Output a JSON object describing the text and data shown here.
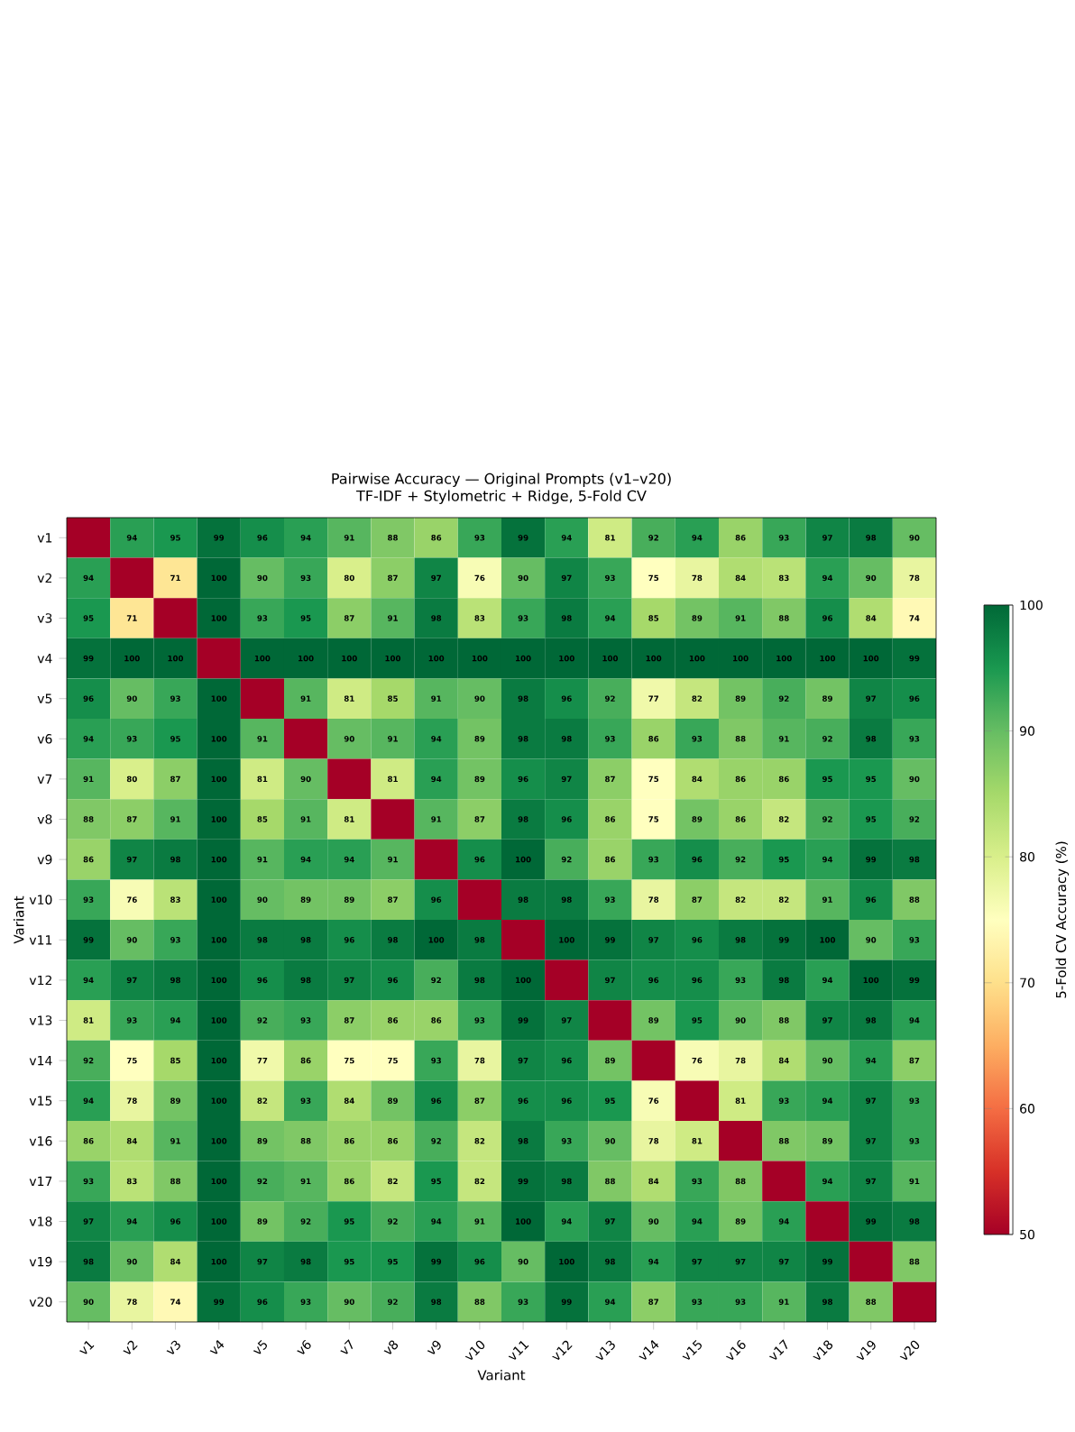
{
  "chart_data": {
    "type": "heatmap",
    "title": "Pairwise Accuracy — Original Prompts (v1–v20)",
    "subtitle": "TF-IDF + Stylometric + Ridge, 5-Fold CV",
    "xlabel": "Variant",
    "ylabel": "Variant",
    "clabel": "5-Fold CV Accuracy (%)",
    "categories": [
      "v1",
      "v2",
      "v3",
      "v4",
      "v5",
      "v6",
      "v7",
      "v8",
      "v9",
      "v10",
      "v11",
      "v12",
      "v13",
      "v14",
      "v15",
      "v16",
      "v17",
      "v18",
      "v19",
      "v20"
    ],
    "y_categories": [
      "v1",
      "v2",
      "v3",
      "v4",
      "v5",
      "v6",
      "v7",
      "v8",
      "v9",
      "v10",
      "v11",
      "v12",
      "v13",
      "v14",
      "v15",
      "v16",
      "v17",
      "v18",
      "v19",
      "v20"
    ],
    "cells": [
      [
        50,
        94,
        95,
        99,
        96,
        94,
        91,
        88,
        86,
        93,
        99,
        94,
        81,
        92,
        94,
        86,
        93,
        97,
        98,
        90
      ],
      [
        94,
        50,
        71,
        100,
        90,
        93,
        80,
        87,
        97,
        76,
        90,
        97,
        93,
        75,
        78,
        84,
        83,
        94,
        90,
        78
      ],
      [
        95,
        71,
        50,
        100,
        93,
        95,
        87,
        91,
        98,
        83,
        93,
        98,
        94,
        85,
        89,
        91,
        88,
        96,
        84,
        74
      ],
      [
        99,
        100,
        100,
        50,
        100,
        100,
        100,
        100,
        100,
        100,
        100,
        100,
        100,
        100,
        100,
        100,
        100,
        100,
        100,
        99
      ],
      [
        96,
        90,
        93,
        100,
        50,
        91,
        81,
        85,
        91,
        90,
        98,
        96,
        92,
        77,
        82,
        89,
        92,
        89,
        97,
        96
      ],
      [
        94,
        93,
        95,
        100,
        91,
        50,
        90,
        91,
        94,
        89,
        98,
        98,
        93,
        86,
        93,
        88,
        91,
        92,
        98,
        93
      ],
      [
        91,
        80,
        87,
        100,
        81,
        90,
        50,
        81,
        94,
        89,
        96,
        97,
        87,
        75,
        84,
        86,
        86,
        95,
        95,
        90
      ],
      [
        88,
        87,
        91,
        100,
        85,
        91,
        81,
        50,
        91,
        87,
        98,
        96,
        86,
        75,
        89,
        86,
        82,
        92,
        95,
        92
      ],
      [
        86,
        97,
        98,
        100,
        91,
        94,
        94,
        91,
        50,
        96,
        100,
        92,
        86,
        93,
        96,
        92,
        95,
        94,
        99,
        98
      ],
      [
        93,
        76,
        83,
        100,
        90,
        89,
        89,
        87,
        96,
        50,
        98,
        98,
        93,
        78,
        87,
        82,
        82,
        91,
        96,
        88
      ],
      [
        99,
        90,
        93,
        100,
        98,
        98,
        96,
        98,
        100,
        98,
        50,
        100,
        99,
        97,
        96,
        98,
        99,
        100,
        90,
        93
      ],
      [
        94,
        97,
        98,
        100,
        96,
        98,
        97,
        96,
        92,
        98,
        100,
        50,
        97,
        96,
        96,
        93,
        98,
        94,
        100,
        99
      ],
      [
        81,
        93,
        94,
        100,
        92,
        93,
        87,
        86,
        86,
        93,
        99,
        97,
        50,
        89,
        95,
        90,
        88,
        97,
        98,
        94
      ],
      [
        92,
        75,
        85,
        100,
        77,
        86,
        75,
        75,
        93,
        78,
        97,
        96,
        89,
        50,
        76,
        78,
        84,
        90,
        94,
        87
      ],
      [
        94,
        78,
        89,
        100,
        82,
        93,
        84,
        89,
        96,
        87,
        96,
        96,
        95,
        76,
        50,
        81,
        93,
        94,
        97,
        93
      ],
      [
        86,
        84,
        91,
        100,
        89,
        88,
        86,
        86,
        92,
        82,
        98,
        93,
        90,
        78,
        81,
        50,
        88,
        89,
        97,
        93
      ],
      [
        93,
        83,
        88,
        100,
        92,
        91,
        86,
        82,
        95,
        82,
        99,
        98,
        88,
        84,
        93,
        88,
        50,
        94,
        97,
        91
      ],
      [
        97,
        94,
        96,
        100,
        89,
        92,
        95,
        92,
        94,
        91,
        100,
        94,
        97,
        90,
        94,
        89,
        94,
        50,
        99,
        98
      ],
      [
        98,
        90,
        84,
        100,
        97,
        98,
        95,
        95,
        99,
        96,
        90,
        100,
        98,
        94,
        97,
        97,
        97,
        99,
        50,
        88
      ],
      [
        90,
        78,
        74,
        99,
        96,
        93,
        90,
        92,
        98,
        88,
        93,
        99,
        94,
        87,
        93,
        93,
        91,
        98,
        88,
        50
      ]
    ],
    "cell_labels": [
      [
        null,
        "94",
        "95",
        "99",
        "96",
        "94",
        "91",
        "88",
        "86",
        "93",
        "99",
        "94",
        "81",
        "92",
        "94",
        "86",
        "93",
        "97",
        "98",
        "90"
      ],
      [
        "94",
        null,
        "71",
        "100",
        "90",
        "93",
        "80",
        "87",
        "97",
        "76",
        "90",
        "97",
        "93",
        "75",
        "78",
        "84",
        "83",
        "94",
        "90",
        "78"
      ],
      [
        "95",
        "71",
        null,
        "100",
        "93",
        "95",
        "87",
        "91",
        "98",
        "83",
        "93",
        "98",
        "94",
        "85",
        "89",
        "91",
        "88",
        "96",
        "84",
        "74"
      ],
      [
        "99",
        "100",
        "100",
        null,
        "100",
        "100",
        "100",
        "100",
        "100",
        "100",
        "100",
        "100",
        "100",
        "100",
        "100",
        "100",
        "100",
        "100",
        "100",
        "99"
      ],
      [
        "96",
        "90",
        "93",
        "100",
        null,
        "91",
        "81",
        "85",
        "91",
        "90",
        "98",
        "96",
        "92",
        "77",
        "82",
        "89",
        "92",
        "89",
        "97",
        "96"
      ],
      [
        "94",
        "93",
        "95",
        "100",
        "91",
        null,
        "90",
        "91",
        "94",
        "89",
        "98",
        "98",
        "93",
        "86",
        "93",
        "88",
        "91",
        "92",
        "98",
        "93"
      ],
      [
        "91",
        "80",
        "87",
        "100",
        "81",
        "90",
        null,
        "81",
        "94",
        "89",
        "96",
        "97",
        "87",
        "75",
        "84",
        "86",
        "86",
        "95",
        "95",
        "90"
      ],
      [
        "88",
        "87",
        "91",
        "100",
        "85",
        "91",
        "81",
        null,
        "91",
        "87",
        "98",
        "96",
        "86",
        "75",
        "89",
        "86",
        "82",
        "92",
        "95",
        "92"
      ],
      [
        "86",
        "97",
        "98",
        "100",
        "91",
        "94",
        "94",
        "91",
        null,
        "96",
        "100",
        "92",
        "86",
        "93",
        "96",
        "92",
        "95",
        "94",
        "99",
        "98"
      ],
      [
        "93",
        "76",
        "83",
        "100",
        "90",
        "89",
        "89",
        "87",
        "96",
        null,
        "98",
        "98",
        "93",
        "78",
        "87",
        "82",
        "82",
        "91",
        "96",
        "88"
      ],
      [
        "99",
        "90",
        "93",
        "100",
        "98",
        "98",
        "96",
        "98",
        "100",
        "98",
        null,
        "100",
        "99",
        "97",
        "96",
        "98",
        "99",
        "100",
        "90",
        "93"
      ],
      [
        "94",
        "97",
        "98",
        "100",
        "96",
        "98",
        "97",
        "96",
        "92",
        "98",
        "100",
        null,
        "97",
        "96",
        "96",
        "93",
        "98",
        "94",
        "100",
        "99"
      ],
      [
        "81",
        "93",
        "94",
        "100",
        "92",
        "93",
        "87",
        "86",
        "86",
        "93",
        "99",
        "97",
        null,
        "89",
        "95",
        "90",
        "88",
        "97",
        "98",
        "94"
      ],
      [
        "92",
        "75",
        "85",
        "100",
        "77",
        "86",
        "75",
        "75",
        "93",
        "78",
        "97",
        "96",
        "89",
        null,
        "76",
        "78",
        "84",
        "90",
        "94",
        "87"
      ],
      [
        "94",
        "78",
        "89",
        "100",
        "82",
        "93",
        "84",
        "89",
        "96",
        "87",
        "96",
        "96",
        "95",
        "76",
        null,
        "81",
        "93",
        "94",
        "97",
        "93"
      ],
      [
        "86",
        "84",
        "91",
        "100",
        "89",
        "88",
        "86",
        "86",
        "92",
        "82",
        "98",
        "93",
        "90",
        "78",
        "81",
        null,
        "88",
        "89",
        "97",
        "93"
      ],
      [
        "93",
        "83",
        "88",
        "100",
        "92",
        "91",
        "86",
        "82",
        "95",
        "82",
        "99",
        "98",
        "88",
        "84",
        "93",
        "88",
        null,
        "94",
        "97",
        "91"
      ],
      [
        "97",
        "94",
        "96",
        "100",
        "89",
        "92",
        "95",
        "92",
        "94",
        "91",
        "100",
        "94",
        "97",
        "90",
        "94",
        "89",
        "94",
        null,
        "99",
        "98"
      ],
      [
        "98",
        "90",
        "84",
        "100",
        "97",
        "98",
        "95",
        "95",
        "99",
        "96",
        "90",
        "100",
        "98",
        "94",
        "97",
        "97",
        "97",
        "99",
        null,
        "88"
      ],
      [
        "90",
        "78",
        "74",
        "99",
        "96",
        "93",
        "90",
        "92",
        "98",
        "88",
        "93",
        "99",
        "94",
        "87",
        "93",
        "93",
        "91",
        "98",
        "88",
        null
      ]
    ],
    "clim": [
      50,
      100
    ],
    "cticks": [
      50,
      60,
      70,
      80,
      90,
      100
    ]
  }
}
